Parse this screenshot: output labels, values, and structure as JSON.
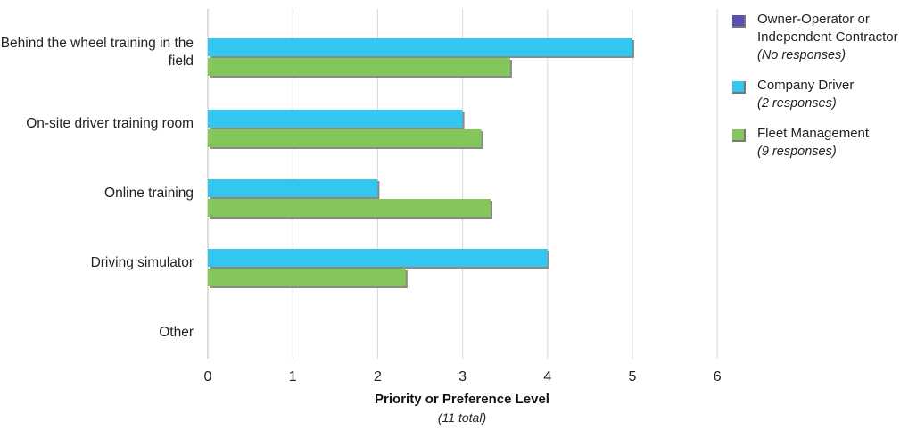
{
  "chart_data": {
    "type": "bar",
    "orientation": "horizontal",
    "categories": [
      "Behind the wheel training in the field",
      "On-site driver training room",
      "Online training",
      "Driving simulator",
      "Other"
    ],
    "series": [
      {
        "name": "Owner-Operator or Independent Contractor",
        "note": "(No responses)",
        "color": "#5b4fb8",
        "values": [
          null,
          null,
          null,
          null,
          null
        ]
      },
      {
        "name": "Company Driver",
        "note": "(2 responses)",
        "color": "#33c6f0",
        "values": [
          5,
          3,
          2,
          4,
          null
        ]
      },
      {
        "name": "Fleet Management",
        "note": "(9 responses)",
        "color": "#85c65a",
        "values": [
          3.56,
          3.22,
          3.33,
          2.33,
          null
        ]
      }
    ],
    "xlabel": "Priority or Preference Level",
    "xlabel_sub": "(11 total)",
    "xlim": [
      0,
      6
    ],
    "xticks": [
      "0",
      "1",
      "2",
      "3",
      "4",
      "5",
      "6"
    ],
    "grid": true,
    "legend_position": "right"
  }
}
